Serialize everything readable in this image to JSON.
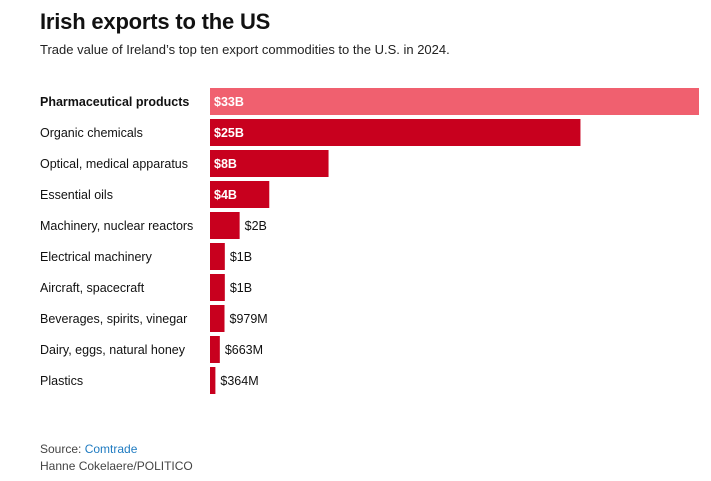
{
  "header": {
    "title": "Irish exports to the US",
    "subtitle": "Trade value of Ireland’s top ten export commodities to the U.S. in 2024."
  },
  "footer": {
    "source_label": "Source:",
    "source_link": "Comtrade",
    "credit": "Hanne Cokelaere/POLITICO"
  },
  "colors": {
    "highlight": "#f0606f",
    "bar": "#c8001e",
    "label_inside": "#ffffff",
    "label_outside": "#111111"
  },
  "chart_data": {
    "type": "bar",
    "orientation": "horizontal",
    "categories": [
      "Pharmaceutical products",
      "Organic chemicals",
      "Optical, medical apparatus",
      "Essential oils",
      "Machinery, nuclear reactors",
      "Electrical machinery",
      "Aircraft, spacecraft",
      "Beverages, spirits, vinegar",
      "Dairy, eggs, natural honey",
      "Plastics"
    ],
    "values": [
      33,
      25,
      8,
      4,
      2,
      1,
      1,
      0.979,
      0.663,
      0.364
    ],
    "unit": "billion USD",
    "value_labels": [
      "$33B",
      "$25B",
      "$8B",
      "$4B",
      "$2B",
      "$1B",
      "$1B",
      "$979M",
      "$663M",
      "$364M"
    ],
    "highlighted_index": 0,
    "xlim": [
      0,
      33
    ],
    "grid": false,
    "legend": "none"
  }
}
